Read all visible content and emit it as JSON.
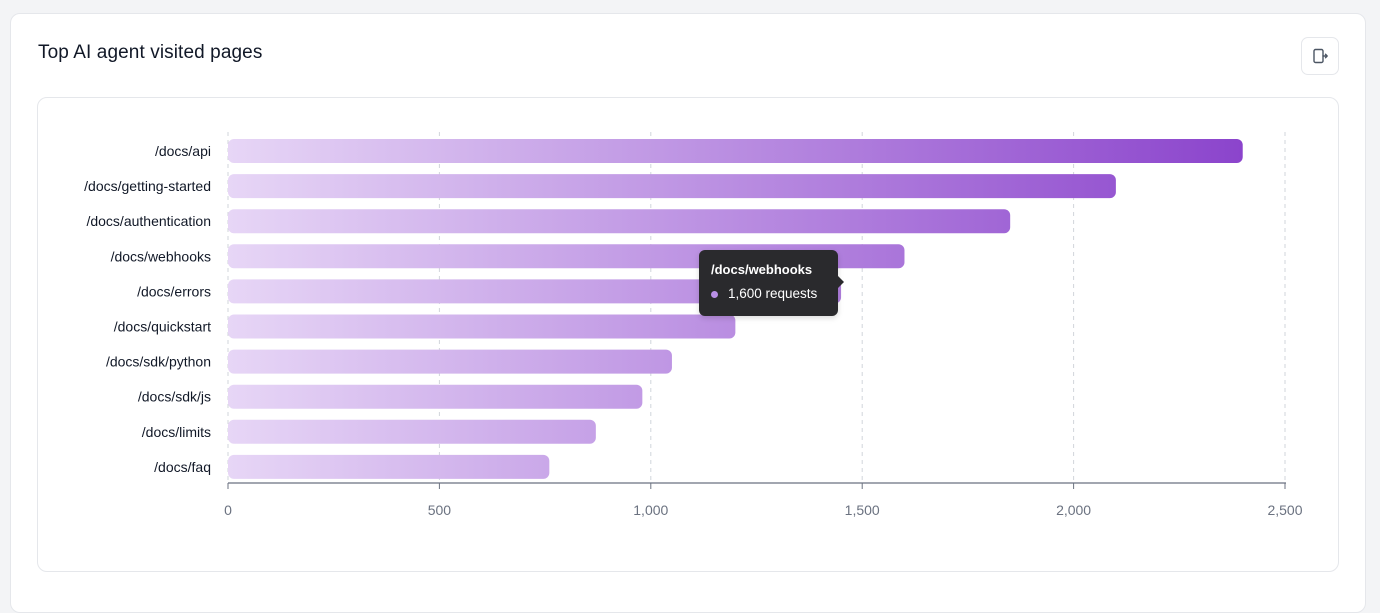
{
  "card": {
    "title": "Top AI agent visited pages",
    "export_icon": "export-icon"
  },
  "colors": {
    "bar_start": "#e7d6f6",
    "bar_end": "#8b44cc",
    "grid": "#d1d5db",
    "axis": "#6b7280",
    "tick_text": "#6b7280",
    "label_text": "#111827",
    "tooltip_dot": "#b98fe6"
  },
  "tooltip": {
    "title": "/docs/webhooks",
    "value_text": "1,600 requests"
  },
  "chart_data": {
    "type": "bar",
    "orientation": "horizontal",
    "title": "",
    "xlabel": "",
    "ylabel": "",
    "xlim": [
      0,
      2500
    ],
    "xticks": [
      0,
      500,
      1000,
      1500,
      2000,
      2500
    ],
    "xtick_labels": [
      "0",
      "500",
      "1,000",
      "1,500",
      "2,000",
      "2,500"
    ],
    "grid": "vertical dashed",
    "categories": [
      "/docs/api",
      "/docs/getting-started",
      "/docs/authentication",
      "/docs/webhooks",
      "/docs/errors",
      "/docs/quickstart",
      "/docs/sdk/python",
      "/docs/sdk/js",
      "/docs/limits",
      "/docs/faq"
    ],
    "values": [
      2400,
      2100,
      1850,
      1600,
      1450,
      1200,
      1050,
      980,
      870,
      760
    ]
  }
}
